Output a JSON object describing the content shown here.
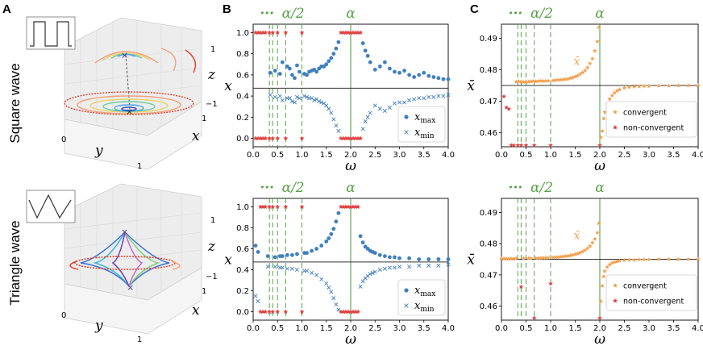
{
  "row_labels": [
    "Square wave",
    "Triangle wave"
  ],
  "panel_letters": [
    "A",
    "B",
    "C"
  ],
  "panel_a": {
    "tick_labels": {
      "z_top": "1",
      "z_bottom": "−1",
      "z_axis": "z",
      "x_near": "1",
      "x_axis": "x",
      "y_left": "0",
      "y_right": "1",
      "y_axis": "y"
    }
  },
  "chart_data": [
    {
      "id": "B-top",
      "type": "scatter",
      "xlabel": "ω",
      "ylabel": "x",
      "xlim": [
        0,
        4.0
      ],
      "ylim": [
        -0.08,
        1.08
      ],
      "xticks": [
        "0.0",
        "0.5",
        "1.0",
        "1.5",
        "2.0",
        "2.5",
        "3.0",
        "3.5",
        "4.0"
      ],
      "yticks": [
        "0.0",
        "0.2",
        "0.4",
        "0.6",
        "0.8",
        "1.0"
      ],
      "hline": 0.474,
      "vlines_dashed": [
        0.333,
        0.4,
        0.5,
        0.667,
        1.0
      ],
      "vline_solid": 2.0,
      "top_labels": {
        "dots": "···",
        "half": "α/2",
        "alpha": "α"
      },
      "legend": [
        "x_max",
        "x_min"
      ],
      "legend_text": {
        "max_main": "x",
        "max_sub": "max",
        "min_main": "x",
        "min_sub": "min"
      },
      "nonconv_x": [
        0.05,
        0.1,
        0.15,
        0.2,
        0.25,
        0.333,
        0.4,
        0.5,
        0.667,
        1.0,
        1.8,
        1.85,
        1.9,
        1.95,
        2.0,
        2.05,
        2.1,
        2.15,
        2.2
      ],
      "series": [
        {
          "name": "x_max",
          "x": [
            0.35,
            0.45,
            0.55,
            0.6,
            0.7,
            0.75,
            0.8,
            0.85,
            0.9,
            0.95,
            1.05,
            1.1,
            1.15,
            1.2,
            1.25,
            1.3,
            1.35,
            1.4,
            1.45,
            1.5,
            1.55,
            1.6,
            1.65,
            1.7,
            1.75,
            2.25,
            2.3,
            2.35,
            2.4,
            2.5,
            2.6,
            2.7,
            2.8,
            2.9,
            3.0,
            3.1,
            3.2,
            3.3,
            3.4,
            3.5,
            3.6,
            3.7,
            3.8,
            3.9,
            4.0
          ],
          "y": [
            0.62,
            0.64,
            0.61,
            0.72,
            0.68,
            0.66,
            0.6,
            0.57,
            0.69,
            0.63,
            0.61,
            0.6,
            0.63,
            0.64,
            0.65,
            0.63,
            0.66,
            0.68,
            0.68,
            0.7,
            0.73,
            0.76,
            0.8,
            0.85,
            0.91,
            0.9,
            0.83,
            0.78,
            0.72,
            0.65,
            0.68,
            0.72,
            0.66,
            0.63,
            0.62,
            0.64,
            0.6,
            0.58,
            0.6,
            0.62,
            0.59,
            0.58,
            0.57,
            0.56,
            0.56
          ]
        },
        {
          "name": "x_min",
          "x": [
            0.35,
            0.45,
            0.55,
            0.6,
            0.7,
            0.75,
            0.8,
            0.85,
            0.9,
            0.95,
            1.05,
            1.1,
            1.15,
            1.2,
            1.25,
            1.3,
            1.35,
            1.4,
            1.45,
            1.5,
            1.55,
            1.6,
            1.65,
            1.7,
            1.75,
            2.25,
            2.3,
            2.35,
            2.4,
            2.5,
            2.6,
            2.7,
            2.8,
            2.9,
            3.0,
            3.1,
            3.2,
            3.3,
            3.4,
            3.5,
            3.6,
            3.7,
            3.8,
            3.9,
            4.0
          ],
          "y": [
            0.41,
            0.39,
            0.4,
            0.36,
            0.38,
            0.38,
            0.35,
            0.34,
            0.39,
            0.38,
            0.4,
            0.39,
            0.38,
            0.38,
            0.36,
            0.37,
            0.35,
            0.34,
            0.33,
            0.31,
            0.28,
            0.24,
            0.18,
            0.12,
            0.07,
            0.09,
            0.16,
            0.2,
            0.24,
            0.31,
            0.28,
            0.26,
            0.29,
            0.33,
            0.34,
            0.34,
            0.36,
            0.37,
            0.38,
            0.38,
            0.39,
            0.39,
            0.4,
            0.4,
            0.41
          ]
        }
      ]
    },
    {
      "id": "B-bottom",
      "type": "scatter",
      "xlabel": "ω",
      "ylabel": "x",
      "xlim": [
        0,
        4.0
      ],
      "ylim": [
        -0.08,
        1.08
      ],
      "xticks": [
        "0.0",
        "0.5",
        "1.0",
        "1.5",
        "2.0",
        "2.5",
        "3.0",
        "3.5",
        "4.0"
      ],
      "yticks": [
        "0.0",
        "0.2",
        "0.4",
        "0.6",
        "0.8",
        "1.0"
      ],
      "hline": 0.474,
      "vlines_dashed": [
        0.333,
        0.4,
        0.5,
        0.667,
        1.0
      ],
      "vline_solid": 2.0,
      "top_labels": {
        "dots": "···",
        "half": "α/2",
        "alpha": "α"
      },
      "legend": [
        "x_max",
        "x_min"
      ],
      "legend_text": {
        "max_main": "x",
        "max_sub": "max",
        "min_main": "x",
        "min_sub": "min"
      },
      "nonconv_x": [
        0.15,
        0.2,
        0.25,
        0.333,
        0.4,
        0.5,
        0.667,
        1.0,
        1.8,
        1.85,
        1.9,
        1.95,
        2.0,
        2.05,
        2.1,
        2.15
      ],
      "series": [
        {
          "name": "x_max",
          "x": [
            0.05,
            0.1,
            0.3,
            0.45,
            0.55,
            0.6,
            0.7,
            0.8,
            0.9,
            1.05,
            1.1,
            1.2,
            1.3,
            1.4,
            1.5,
            1.55,
            1.6,
            1.65,
            1.7,
            1.75,
            2.2,
            2.25,
            2.3,
            2.35,
            2.4,
            2.45,
            2.5,
            2.6,
            2.7,
            2.8,
            2.9,
            3.0,
            3.2,
            3.4,
            3.6,
            3.8,
            4.0
          ],
          "y": [
            0.63,
            0.57,
            0.53,
            0.52,
            0.53,
            0.53,
            0.54,
            0.54,
            0.55,
            0.56,
            0.56,
            0.58,
            0.6,
            0.63,
            0.67,
            0.7,
            0.74,
            0.79,
            0.86,
            0.94,
            0.72,
            0.66,
            0.62,
            0.6,
            0.58,
            0.57,
            0.56,
            0.54,
            0.53,
            0.52,
            0.52,
            0.51,
            0.51,
            0.5,
            0.5,
            0.5,
            0.5
          ]
        },
        {
          "name": "x_min",
          "x": [
            0.05,
            0.1,
            0.3,
            0.45,
            0.55,
            0.6,
            0.7,
            0.8,
            0.9,
            1.05,
            1.1,
            1.2,
            1.3,
            1.4,
            1.5,
            1.55,
            1.6,
            1.65,
            1.7,
            1.75,
            2.2,
            2.25,
            2.3,
            2.35,
            2.4,
            2.45,
            2.5,
            2.6,
            2.7,
            2.8,
            2.9,
            3.0,
            3.2,
            3.4,
            3.6,
            3.8,
            4.0
          ],
          "y": [
            0.15,
            0.1,
            0.43,
            0.43,
            0.42,
            0.42,
            0.41,
            0.41,
            0.4,
            0.39,
            0.39,
            0.37,
            0.35,
            0.31,
            0.27,
            0.23,
            0.19,
            0.13,
            0.07,
            0.02,
            0.24,
            0.29,
            0.32,
            0.34,
            0.36,
            0.37,
            0.38,
            0.4,
            0.41,
            0.42,
            0.42,
            0.43,
            0.43,
            0.44,
            0.44,
            0.44,
            0.45
          ]
        }
      ]
    },
    {
      "id": "C-top",
      "type": "scatter",
      "xlabel": "ω",
      "ylabel": "x̄",
      "xlim": [
        0,
        4.0
      ],
      "ylim": [
        0.4555,
        0.4945
      ],
      "xticks": [
        "0.0",
        "0.5",
        "1.0",
        "1.5",
        "2.0",
        "2.5",
        "3.0",
        "3.5",
        "4.0"
      ],
      "yticks": [
        "0.46",
        "0.47",
        "0.48",
        "0.49"
      ],
      "hline": 0.475,
      "vlines_dashed": [
        0.333,
        0.4,
        0.5,
        0.667,
        1.0
      ],
      "vline_solid": 2.0,
      "top_labels": {
        "dots": "···",
        "half": "α/2",
        "alpha": "α"
      },
      "annotation": "x̄",
      "legend": [
        "convergent",
        "non-convergent"
      ],
      "series": [
        {
          "name": "convergent",
          "x": [
            0.3,
            0.35,
            0.4,
            0.45,
            0.5,
            0.55,
            0.6,
            0.65,
            0.7,
            0.75,
            0.8,
            0.85,
            0.9,
            0.95,
            1.05,
            1.1,
            1.15,
            1.2,
            1.25,
            1.3,
            1.35,
            1.4,
            1.45,
            1.5,
            1.55,
            1.6,
            1.65,
            1.7,
            1.75,
            1.8,
            1.85,
            1.9,
            1.95,
            1.98,
            2.02,
            2.05,
            2.08,
            2.1,
            2.15,
            2.2,
            2.25,
            2.3,
            2.35,
            2.4,
            2.5,
            2.6,
            2.7,
            2.8,
            2.9,
            3.0,
            3.2,
            3.4,
            3.6,
            3.8,
            4.0
          ],
          "y": [
            0.4762,
            0.4763,
            0.4762,
            0.4761,
            0.4762,
            0.4762,
            0.4763,
            0.4764,
            0.4763,
            0.4764,
            0.4765,
            0.4764,
            0.4765,
            0.4765,
            0.4766,
            0.4767,
            0.4768,
            0.4768,
            0.4769,
            0.477,
            0.4771,
            0.4773,
            0.4775,
            0.4778,
            0.4781,
            0.4786,
            0.4791,
            0.4798,
            0.4807,
            0.482,
            0.4835,
            0.486,
            0.489,
            0.4935,
            0.4585,
            0.4605,
            0.4645,
            0.4665,
            0.469,
            0.4707,
            0.4718,
            0.4727,
            0.4733,
            0.4737,
            0.4742,
            0.4745,
            0.4746,
            0.4747,
            0.4748,
            0.4748,
            0.4749,
            0.4749,
            0.475,
            0.475,
            0.475
          ]
        },
        {
          "name": "non-convergent",
          "x": [
            0.05,
            0.1,
            0.15,
            0.2,
            0.25,
            0.333,
            0.4,
            0.5,
            0.667,
            1.0,
            2.0
          ],
          "y": [
            0.4715,
            0.468,
            0.4675,
            0.456,
            0.456,
            0.456,
            0.456,
            0.456,
            0.456,
            0.456,
            0.456
          ]
        }
      ]
    },
    {
      "id": "C-bottom",
      "type": "scatter",
      "xlabel": "ω",
      "ylabel": "x̄",
      "xlim": [
        0,
        4.0
      ],
      "ylim": [
        0.4555,
        0.4945
      ],
      "xticks": [
        "0.0",
        "0.5",
        "1.0",
        "1.5",
        "2.0",
        "2.5",
        "3.0",
        "3.5",
        "4.0"
      ],
      "yticks": [
        "0.46",
        "0.47",
        "0.48",
        "0.49"
      ],
      "hline": 0.475,
      "vlines_dashed": [
        0.333,
        0.4,
        0.5,
        0.667,
        1.0
      ],
      "vline_solid": 2.0,
      "top_labels": {
        "dots": "···",
        "half": "α/2",
        "alpha": "α"
      },
      "annotation": "x̄",
      "legend": [
        "convergent",
        "non-convergent"
      ],
      "series": [
        {
          "name": "convergent",
          "x": [
            0.0,
            0.05,
            0.1,
            0.15,
            0.2,
            0.25,
            0.3,
            0.45,
            0.55,
            0.6,
            0.7,
            0.75,
            0.8,
            0.85,
            0.9,
            0.95,
            1.05,
            1.1,
            1.15,
            1.2,
            1.25,
            1.3,
            1.35,
            1.4,
            1.45,
            1.5,
            1.55,
            1.6,
            1.65,
            1.7,
            1.75,
            1.8,
            1.85,
            1.9,
            1.95,
            1.98,
            2.02,
            2.05,
            2.08,
            2.1,
            2.15,
            2.2,
            2.25,
            2.3,
            2.35,
            2.4,
            2.5,
            2.6,
            2.7,
            2.8,
            2.9,
            3.0,
            3.2,
            3.4,
            3.6,
            3.8,
            4.0
          ],
          "y": [
            0.4752,
            0.4752,
            0.4752,
            0.4752,
            0.4752,
            0.4752,
            0.4753,
            0.4753,
            0.4753,
            0.4753,
            0.4754,
            0.4754,
            0.4754,
            0.4755,
            0.4755,
            0.4755,
            0.4756,
            0.4757,
            0.4757,
            0.4758,
            0.4759,
            0.476,
            0.4761,
            0.4762,
            0.4764,
            0.4766,
            0.4768,
            0.4771,
            0.4775,
            0.4779,
            0.4785,
            0.4792,
            0.4803,
            0.4815,
            0.4835,
            0.4865,
            0.4615,
            0.4665,
            0.4695,
            0.4712,
            0.4725,
            0.4733,
            0.4738,
            0.4741,
            0.4743,
            0.4745,
            0.4747,
            0.4748,
            0.4748,
            0.4749,
            0.4749,
            0.4749,
            0.475,
            0.475,
            0.475,
            0.475,
            0.475
          ]
        },
        {
          "name": "non-convergent",
          "x": [
            0.4,
            0.667,
            1.0,
            2.0
          ],
          "y": [
            0.4662,
            0.4562,
            0.4672,
            0.4562
          ]
        }
      ]
    }
  ]
}
